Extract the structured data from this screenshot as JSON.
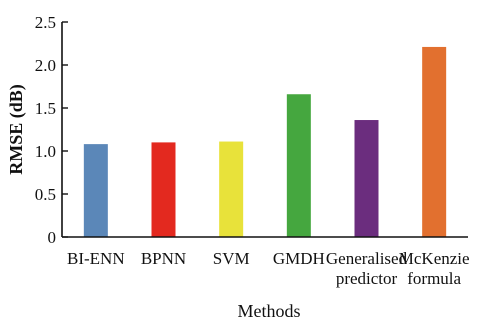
{
  "chart_data": {
    "type": "bar",
    "title": "",
    "xlabel": "Methods",
    "ylabel": "RMSE (dB)",
    "ylim": [
      0,
      2.5
    ],
    "yticks": [
      "0",
      "0.5",
      "1.0",
      "1.5",
      "2.0",
      "2.5"
    ],
    "ytick_values": [
      0,
      0.5,
      1.0,
      1.5,
      2.0,
      2.5
    ],
    "grid": false,
    "categories": [
      [
        "BI-ENN"
      ],
      [
        "BPNN"
      ],
      [
        "SVM"
      ],
      [
        "GMDH"
      ],
      [
        "Generalised",
        "predictor"
      ],
      [
        "McKenzie",
        "formula"
      ]
    ],
    "values": [
      1.08,
      1.1,
      1.11,
      1.66,
      1.36,
      2.21
    ],
    "colors": [
      "#5b87b8",
      "#e3291f",
      "#e8e23a",
      "#45a73f",
      "#6b2d7e",
      "#e2702f"
    ]
  }
}
